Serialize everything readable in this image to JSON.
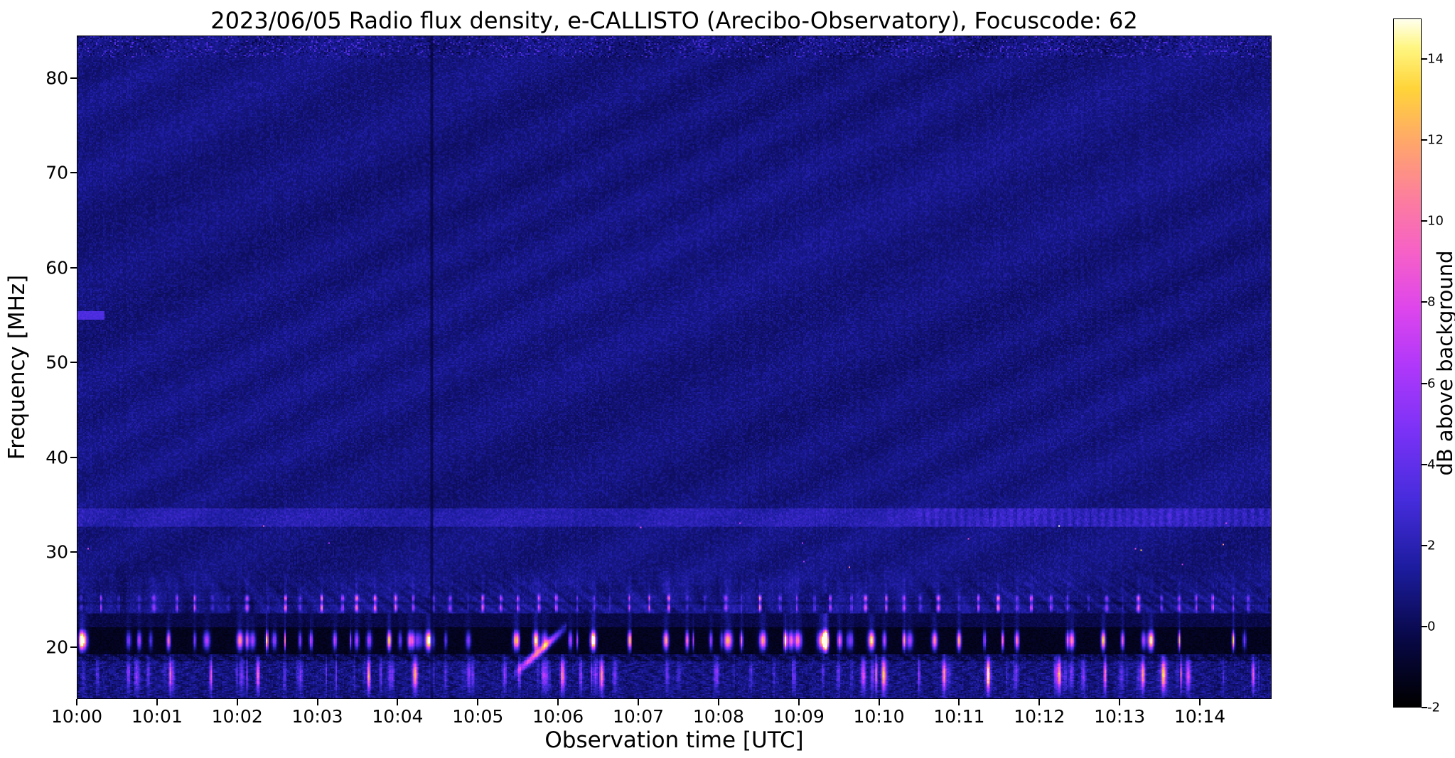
{
  "chart_data": {
    "type": "heatmap",
    "title": "2023/06/05  Radio flux density, e-CALLISTO (Arecibo-Observatory), Focuscode: 62",
    "xlabel": "Observation time [UTC]",
    "ylabel": "Frequency [MHz]",
    "x_ticks": [
      "10:00",
      "10:01",
      "10:02",
      "10:03",
      "10:04",
      "10:05",
      "10:06",
      "10:07",
      "10:08",
      "10:09",
      "10:10",
      "10:11",
      "10:12",
      "10:13",
      "10:14"
    ],
    "x_span_minutes": 14.9,
    "y_ticks": [
      80,
      70,
      60,
      50,
      40,
      30,
      20
    ],
    "y_range_mhz": [
      14.5,
      84.5
    ],
    "colorbar": {
      "label": "dB above background",
      "ticks": [
        14,
        12,
        10,
        8,
        6,
        4,
        2,
        0,
        -2
      ],
      "vmin": -2,
      "vmax": 15,
      "colormap": "gnuplot2 (black - dark blue - blue - violet - magenta - pink - orange - yellow - white)"
    },
    "legend": "none",
    "grid": "off",
    "features": [
      "Quiet dark-blue background (~0-1 dB) over 28-85 MHz for the whole 15 minutes",
      "Speckled noise band along the top edge near 83-85 MHz",
      "Short bright horizontal line at ~55 MHz just after 10:00",
      "Slightly enhanced speckled band at 33-34 MHz across the full duration, stronger vertical striping after ~10:10:30",
      "Faint dark vertical line near 10:04:25 spanning all frequencies",
      "Curved interference fringes below ~28 MHz",
      "Black RFI/absorption band at ~19.5-21.5 MHz containing intermittent bright bursts up to ~15 dB",
      "Quasi-periodic short vertical bursts at 24-25 MHz roughly every 10-15 s",
      "Bright drifting burst reaching ~15 dB near 10:05:45 between ~17 and 21 MHz",
      "Speckled activity with sporadic bright points at 15-18.5 MHz"
    ],
    "colors": {
      "page_background": "#ffffff",
      "plot_background": "#14148c",
      "text": "#000000"
    }
  }
}
